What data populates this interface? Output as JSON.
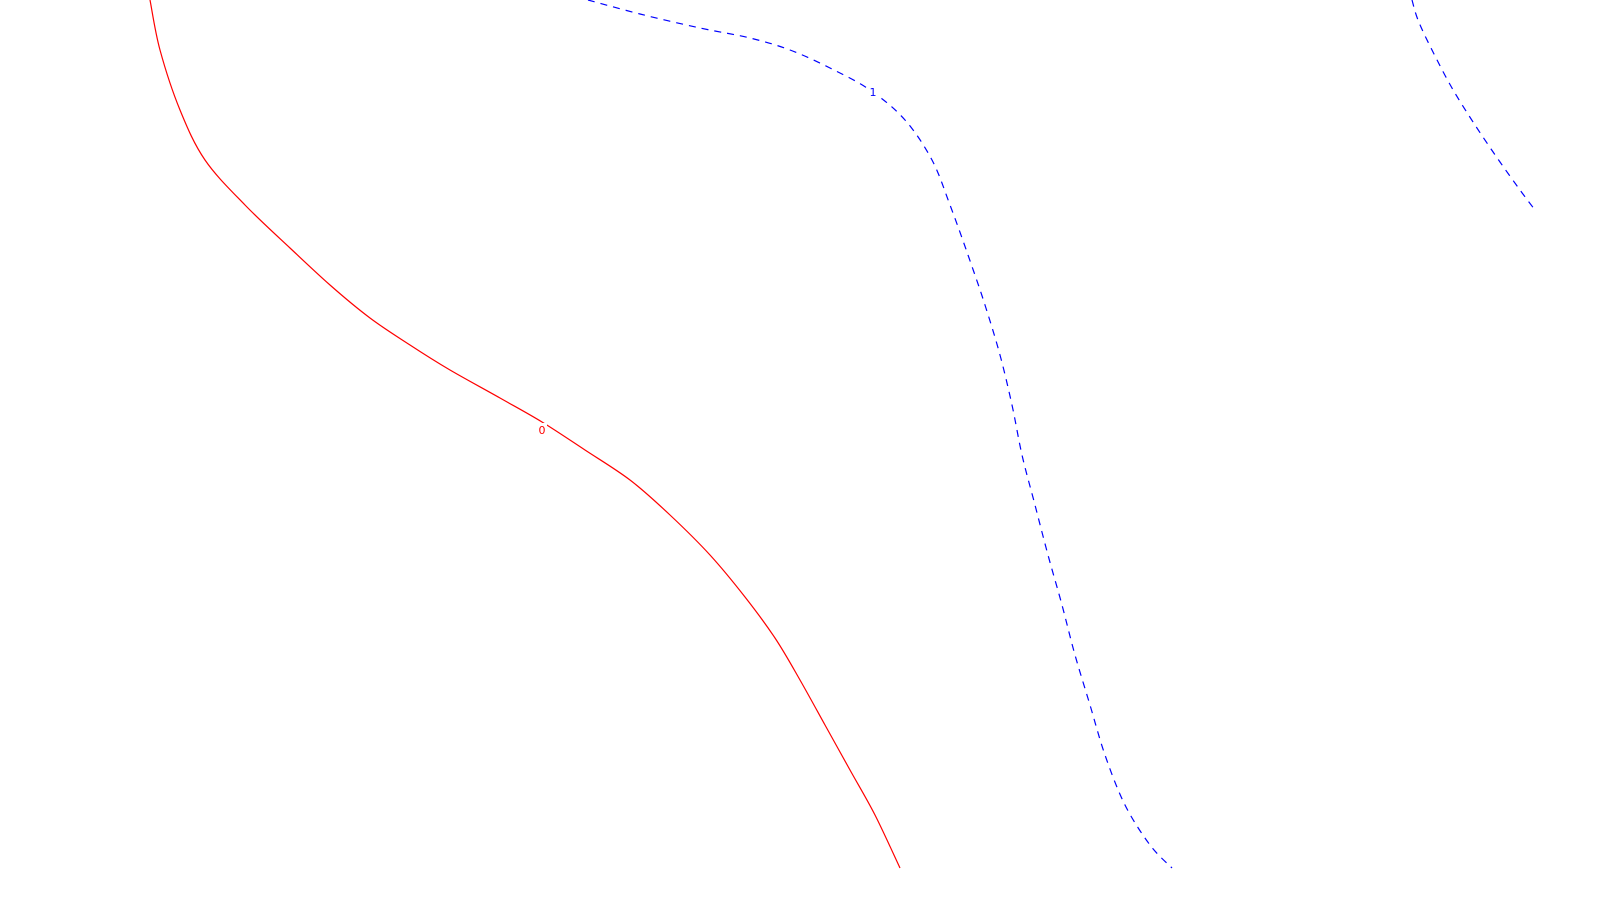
{
  "chart_data": {
    "type": "contour",
    "title": "",
    "xlabel": "",
    "ylabel": "",
    "grid": false,
    "legend": "none",
    "background": "#ffffff",
    "levels": [
      {
        "level_label": "0",
        "color": "#ff0000",
        "style": "solid",
        "segments": [
          {
            "points": [
              [
                150,
                0
              ],
              [
                160,
                50
              ],
              [
                180,
                110
              ],
              [
                205,
                160
              ],
              [
                245,
                205
              ],
              [
                290,
                248
              ],
              [
                330,
                285
              ],
              [
                370,
                318
              ],
              [
                410,
                345
              ],
              [
                450,
                370
              ],
              [
                500,
                398
              ],
              [
                542,
                422
              ],
              [
                585,
                450
              ],
              [
                630,
                480
              ],
              [
                670,
                515
              ],
              [
                710,
                555
              ],
              [
                745,
                597
              ],
              [
                775,
                638
              ],
              [
                800,
                680
              ],
              [
                825,
                725
              ],
              [
                850,
                770
              ],
              [
                875,
                815
              ],
              [
                900,
                868
              ]
            ],
            "label_at": [
              542,
              430
            ]
          }
        ]
      },
      {
        "level_label": "1",
        "color": "#0000ff",
        "style": "dashed",
        "segments": [
          {
            "points": [
              [
                588,
                0
              ],
              [
                640,
                14
              ],
              [
                700,
                28
              ],
              [
                750,
                38
              ],
              [
                790,
                50
              ],
              [
                830,
                68
              ],
              [
                870,
                90
              ],
              [
                905,
                120
              ],
              [
                932,
                160
              ],
              [
                950,
                205
              ],
              [
                968,
                255
              ],
              [
                985,
                305
              ],
              [
                1000,
                355
              ],
              [
                1012,
                405
              ],
              [
                1022,
                455
              ],
              [
                1035,
                505
              ],
              [
                1048,
                555
              ],
              [
                1062,
                605
              ],
              [
                1075,
                655
              ],
              [
                1090,
                705
              ],
              [
                1105,
                755
              ],
              [
                1125,
                805
              ],
              [
                1150,
                845
              ],
              [
                1172,
                868
              ]
            ],
            "label_at": [
              873,
              92
            ]
          },
          {
            "points": [
              [
                1412,
                0
              ],
              [
                1418,
                20
              ],
              [
                1432,
                50
              ],
              [
                1452,
                88
              ],
              [
                1475,
                125
              ],
              [
                1500,
                162
              ],
              [
                1520,
                190
              ],
              [
                1535,
                210
              ]
            ]
          }
        ]
      }
    ]
  }
}
